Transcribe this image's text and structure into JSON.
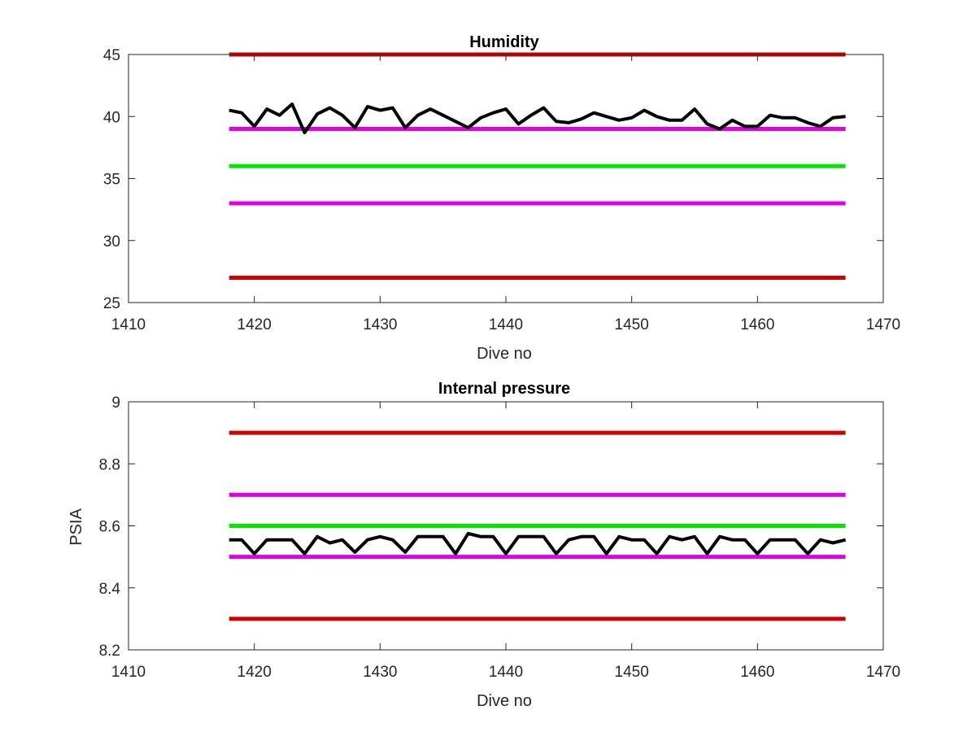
{
  "chart_data": [
    {
      "type": "line",
      "title": "Humidity",
      "xlabel": "Dive no",
      "ylabel": "",
      "xlim": [
        1410,
        1470
      ],
      "ylim": [
        25,
        45
      ],
      "xticks": [
        1410,
        1420,
        1430,
        1440,
        1450,
        1460,
        1470
      ],
      "yticks": [
        25,
        30,
        35,
        40,
        45
      ],
      "grid": false,
      "legend": "none",
      "thresholds": [
        {
          "value": 45,
          "x": [
            1418,
            1467
          ],
          "color": "#d00000"
        },
        {
          "value": 39,
          "x": [
            1418,
            1467
          ],
          "color": "#e100e1"
        },
        {
          "value": 36,
          "x": [
            1418,
            1467
          ],
          "color": "#00e600"
        },
        {
          "value": 33,
          "x": [
            1418,
            1467
          ],
          "color": "#e100e1"
        },
        {
          "value": 27,
          "x": [
            1418,
            1467
          ],
          "color": "#d00000"
        }
      ],
      "series": [
        {
          "color": "#000000",
          "x": [
            1418,
            1419,
            1420,
            1421,
            1422,
            1423,
            1424,
            1425,
            1426,
            1427,
            1428,
            1429,
            1430,
            1431,
            1432,
            1433,
            1434,
            1435,
            1436,
            1437,
            1438,
            1439,
            1440,
            1441,
            1442,
            1443,
            1444,
            1445,
            1446,
            1447,
            1448,
            1449,
            1450,
            1451,
            1452,
            1453,
            1454,
            1455,
            1456,
            1457,
            1458,
            1459,
            1460,
            1461,
            1462,
            1463,
            1464,
            1465,
            1466,
            1467
          ],
          "y": [
            40.5,
            40.3,
            39.2,
            40.6,
            40.1,
            41.0,
            38.7,
            40.2,
            40.7,
            40.1,
            39.1,
            40.8,
            40.5,
            40.7,
            39.1,
            40.1,
            40.6,
            40.1,
            39.6,
            39.1,
            39.9,
            40.3,
            40.6,
            39.4,
            40.1,
            40.7,
            39.6,
            39.5,
            39.8,
            40.3,
            40.0,
            39.7,
            39.9,
            40.5,
            40.0,
            39.7,
            39.7,
            40.6,
            39.4,
            39.0,
            39.7,
            39.2,
            39.2,
            40.1,
            39.9,
            39.9,
            39.5,
            39.2,
            39.9,
            40.0
          ]
        }
      ]
    },
    {
      "type": "line",
      "title": "Internal pressure",
      "xlabel": "Dive no",
      "ylabel": "PSIA",
      "xlim": [
        1410,
        1470
      ],
      "ylim": [
        8.2,
        9.0
      ],
      "xticks": [
        1410,
        1420,
        1430,
        1440,
        1450,
        1460,
        1470
      ],
      "yticks": [
        8.2,
        8.4,
        8.6,
        8.8,
        9.0
      ],
      "ytick_labels": [
        "8.2",
        "8.4",
        "8.6",
        "8.8",
        "9"
      ],
      "grid": false,
      "legend": "none",
      "thresholds": [
        {
          "value": 8.9,
          "x": [
            1418,
            1467
          ],
          "color": "#d00000"
        },
        {
          "value": 8.7,
          "x": [
            1418,
            1467
          ],
          "color": "#e100e1"
        },
        {
          "value": 8.6,
          "x": [
            1418,
            1467
          ],
          "color": "#00e600"
        },
        {
          "value": 8.5,
          "x": [
            1418,
            1467
          ],
          "color": "#e100e1"
        },
        {
          "value": 8.3,
          "x": [
            1418,
            1467
          ],
          "color": "#d00000"
        }
      ],
      "series": [
        {
          "color": "#000000",
          "x": [
            1418,
            1419,
            1420,
            1421,
            1422,
            1423,
            1424,
            1425,
            1426,
            1427,
            1428,
            1429,
            1430,
            1431,
            1432,
            1433,
            1434,
            1435,
            1436,
            1437,
            1438,
            1439,
            1440,
            1441,
            1442,
            1443,
            1444,
            1445,
            1446,
            1447,
            1448,
            1449,
            1450,
            1451,
            1452,
            1453,
            1454,
            1455,
            1456,
            1457,
            1458,
            1459,
            1460,
            1461,
            1462,
            1463,
            1464,
            1465,
            1466,
            1467
          ],
          "y": [
            8.555,
            8.555,
            8.51,
            8.555,
            8.555,
            8.555,
            8.51,
            8.565,
            8.545,
            8.555,
            8.515,
            8.555,
            8.565,
            8.555,
            8.515,
            8.565,
            8.565,
            8.565,
            8.51,
            8.575,
            8.565,
            8.565,
            8.51,
            8.565,
            8.565,
            8.565,
            8.51,
            8.555,
            8.565,
            8.565,
            8.51,
            8.565,
            8.555,
            8.555,
            8.51,
            8.565,
            8.555,
            8.565,
            8.51,
            8.565,
            8.555,
            8.555,
            8.51,
            8.555,
            8.555,
            8.555,
            8.51,
            8.555,
            8.545,
            8.555
          ]
        }
      ]
    }
  ]
}
